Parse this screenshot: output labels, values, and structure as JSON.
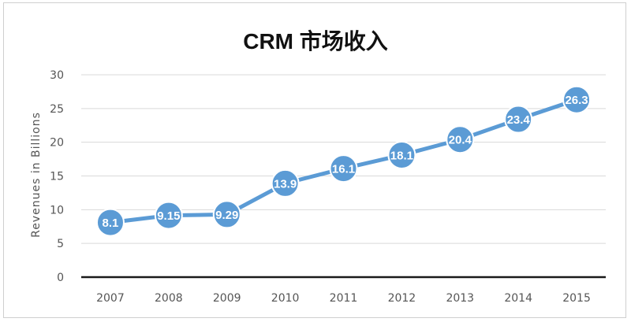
{
  "chart_data": {
    "type": "line",
    "title": "CRM 市场收入",
    "xlabel": "",
    "ylabel": "Revenues in Billions",
    "categories": [
      "2007",
      "2008",
      "2009",
      "2010",
      "2011",
      "2012",
      "2013",
      "2014",
      "2015"
    ],
    "series": [
      {
        "values": [
          8.1,
          9.15,
          9.29,
          13.9,
          16.1,
          18.1,
          20.4,
          23.4,
          26.3
        ],
        "labels": [
          "8.1",
          "9.15",
          "9.29",
          "13.9",
          "16.1",
          "18.1",
          "20.4",
          "23.4",
          "26.3"
        ],
        "color": "#5B9BD5"
      }
    ],
    "ylim": [
      0,
      30
    ],
    "yticks": [
      "0",
      "5",
      "10",
      "15",
      "20",
      "25",
      "30"
    ],
    "grid": true,
    "legend": "none"
  }
}
